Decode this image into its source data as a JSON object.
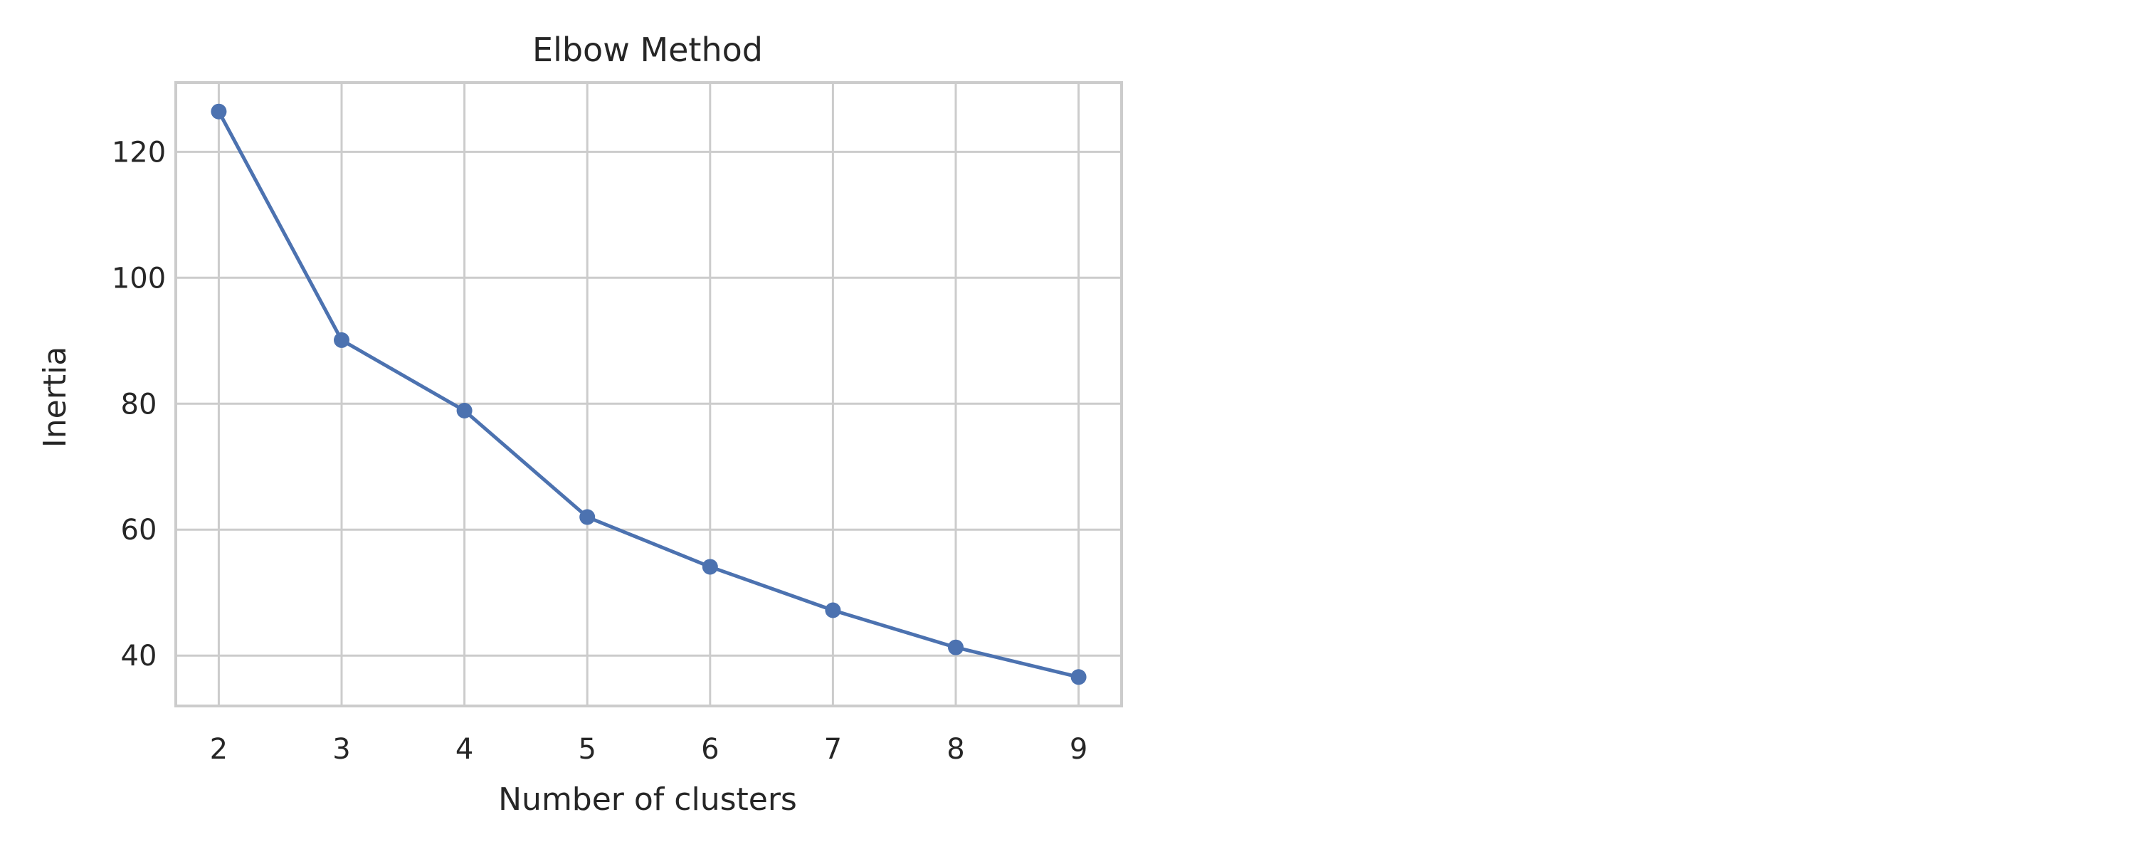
{
  "chart_data": {
    "type": "line",
    "title": "Elbow Method",
    "xlabel": "Number of clusters",
    "ylabel": "Inertia",
    "x": [
      2,
      3,
      4,
      5,
      6,
      7,
      8,
      9
    ],
    "series": [
      {
        "values": [
          126.4,
          90.1,
          78.9,
          62.0,
          54.1,
          47.2,
          41.3,
          36.6
        ]
      }
    ],
    "xlim": [
      1.65,
      9.35
    ],
    "ylim": [
      32.0,
      131.0
    ],
    "xticks": [
      2,
      3,
      4,
      5,
      6,
      7,
      8,
      9
    ],
    "yticks": [
      40,
      60,
      80,
      100,
      120
    ],
    "grid": true,
    "line_color": "#4c72b0",
    "grid_color": "#cccccc",
    "frame_color": "#cccccc"
  }
}
